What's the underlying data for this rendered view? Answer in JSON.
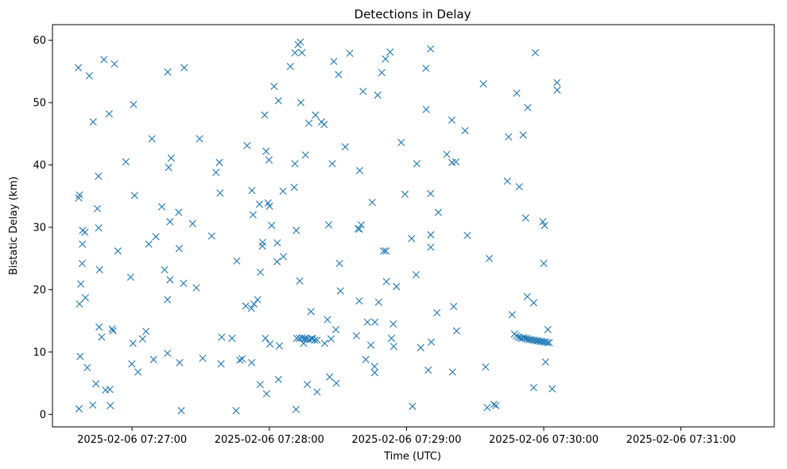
{
  "chart_data": {
    "type": "scatter",
    "title": "Detections in Delay",
    "xlabel": "Time (UTC)",
    "ylabel": "Bistatic Delay (km)",
    "marker": "x",
    "color": "#1f77b4",
    "x_unit": "seconds after 2025-02-06 07:26:00",
    "xlim": [
      25.2,
      340.8
    ],
    "ylim": [
      -2,
      62.5
    ],
    "x_ticks": [
      {
        "value": 60,
        "label": "2025-02-06 07:27:00"
      },
      {
        "value": 120,
        "label": "2025-02-06 07:28:00"
      },
      {
        "value": 180,
        "label": "2025-02-06 07:29:00"
      },
      {
        "value": 240,
        "label": "2025-02-06 07:30:00"
      },
      {
        "value": 300,
        "label": "2025-02-06 07:31:00"
      }
    ],
    "y_ticks": [
      {
        "value": 0,
        "label": "0"
      },
      {
        "value": 10,
        "label": "10"
      },
      {
        "value": 20,
        "label": "20"
      },
      {
        "value": 30,
        "label": "30"
      },
      {
        "value": 40,
        "label": "40"
      },
      {
        "value": 50,
        "label": "50"
      },
      {
        "value": 60,
        "label": "60"
      }
    ],
    "points": [
      [
        36.5,
        55.6
      ],
      [
        37,
        35.2
      ],
      [
        36.7,
        34.7
      ],
      [
        37,
        17.7
      ],
      [
        37.3,
        9.3
      ],
      [
        37.6,
        20.9
      ],
      [
        38.2,
        24.2
      ],
      [
        38.3,
        27.3
      ],
      [
        38.4,
        29.5
      ],
      [
        39.4,
        29.2
      ],
      [
        39.6,
        18.7
      ],
      [
        40.4,
        7.5
      ],
      [
        36.8,
        0.9
      ],
      [
        41.3,
        54.3
      ],
      [
        43.0,
        46.9
      ],
      [
        42.8,
        1.5
      ],
      [
        44.2,
        4.9
      ],
      [
        44.8,
        33.0
      ],
      [
        45.3,
        38.2
      ],
      [
        45.4,
        29.9
      ],
      [
        45.6,
        14.0
      ],
      [
        45.8,
        23.2
      ],
      [
        46.7,
        12.4
      ],
      [
        47.7,
        56.9
      ],
      [
        48.4,
        3.9
      ],
      [
        50.0,
        48.2
      ],
      [
        50.3,
        4.0
      ],
      [
        50.5,
        1.4
      ],
      [
        51.3,
        13.7
      ],
      [
        51.7,
        13.4
      ],
      [
        52.3,
        56.2
      ],
      [
        53.8,
        26.2
      ],
      [
        57.3,
        40.5
      ],
      [
        59.4,
        22.0
      ],
      [
        59.9,
        8.1
      ],
      [
        60.4,
        11.4
      ],
      [
        60.6,
        49.7
      ],
      [
        61.1,
        35.1
      ],
      [
        62.6,
        6.8
      ],
      [
        64.6,
        12.1
      ],
      [
        66.1,
        13.3
      ],
      [
        67.3,
        27.3
      ],
      [
        68.7,
        44.2
      ],
      [
        69.4,
        8.8
      ],
      [
        70.4,
        28.5
      ],
      [
        73.0,
        33.3
      ],
      [
        74.2,
        23.2
      ],
      [
        75.5,
        18.4
      ],
      [
        75.5,
        9.8
      ],
      [
        75.6,
        54.9
      ],
      [
        76.0,
        39.6
      ],
      [
        76.6,
        21.6
      ],
      [
        76.6,
        30.9
      ],
      [
        77.1,
        41.1
      ],
      [
        80.4,
        32.4
      ],
      [
        80.6,
        26.6
      ],
      [
        80.8,
        8.3
      ],
      [
        81.5,
        0.6
      ],
      [
        82.5,
        21.0
      ],
      [
        82.8,
        55.6
      ],
      [
        86.5,
        30.6
      ],
      [
        88.1,
        20.3
      ],
      [
        89.5,
        44.2
      ],
      [
        90.9,
        9.0
      ],
      [
        94.8,
        28.6
      ],
      [
        96.7,
        38.8
      ],
      [
        98.2,
        40.4
      ],
      [
        98.5,
        35.5
      ],
      [
        98.9,
        8.1
      ],
      [
        99.2,
        12.4
      ],
      [
        103.7,
        12.2
      ],
      [
        105.5,
        0.6
      ],
      [
        105.8,
        24.6
      ],
      [
        107.1,
        8.7
      ],
      [
        108.1,
        8.9
      ],
      [
        109.7,
        17.4
      ],
      [
        110.3,
        43.1
      ],
      [
        112.2,
        17.0
      ],
      [
        112.3,
        8.3
      ],
      [
        112.4,
        35.9
      ],
      [
        112.9,
        32.0
      ],
      [
        113.3,
        17.7
      ],
      [
        114.9,
        18.4
      ],
      [
        115.7,
        33.7
      ],
      [
        116.0,
        4.8
      ],
      [
        116.1,
        22.8
      ],
      [
        117.0,
        27.0
      ],
      [
        117.1,
        27.6
      ],
      [
        118.0,
        48.0
      ],
      [
        118.3,
        12.2
      ],
      [
        118.6,
        42.2
      ],
      [
        118.8,
        3.3
      ],
      [
        119.5,
        33.9
      ],
      [
        119.9,
        40.8
      ],
      [
        120.1,
        33.4
      ],
      [
        120.3,
        11.3
      ],
      [
        121.0,
        30.3
      ],
      [
        122.1,
        52.6
      ],
      [
        123.4,
        24.5
      ],
      [
        123.5,
        27.5
      ],
      [
        124.0,
        50.3
      ],
      [
        124.0,
        5.6
      ],
      [
        124.4,
        11.0
      ],
      [
        126.0,
        35.8
      ],
      [
        126.2,
        25.3
      ],
      [
        129.2,
        55.8
      ],
      [
        130.9,
        36.4
      ],
      [
        131.2,
        58.0
      ],
      [
        131.8,
        29.5
      ],
      [
        132.0,
        12.2
      ],
      [
        133.2,
        12.2
      ],
      [
        134.3,
        12.3
      ],
      [
        135.4,
        12.2
      ],
      [
        136.5,
        12.1
      ],
      [
        137.6,
        12.0
      ],
      [
        138.7,
        12.1
      ],
      [
        139.8,
        11.9
      ],
      [
        140.9,
        11.9
      ],
      [
        135.0,
        11.4
      ],
      [
        138.6,
        12.2
      ],
      [
        131.2,
        40.2
      ],
      [
        131.7,
        0.8
      ],
      [
        132.6,
        59.3
      ],
      [
        133.6,
        59.7
      ],
      [
        133.3,
        21.4
      ],
      [
        133.8,
        50.0
      ],
      [
        134.3,
        58.0
      ],
      [
        135.5,
        12.1
      ],
      [
        135.8,
        41.6
      ],
      [
        136.6,
        4.8
      ],
      [
        137.3,
        46.7
      ],
      [
        138.2,
        16.5
      ],
      [
        140.2,
        48.0
      ],
      [
        140.9,
        3.6
      ],
      [
        142.8,
        46.9
      ],
      [
        144.0,
        46.5
      ],
      [
        144.2,
        11.4
      ],
      [
        145.4,
        15.2
      ],
      [
        146.0,
        30.4
      ],
      [
        146.4,
        6.0
      ],
      [
        147.0,
        12.1
      ],
      [
        147.5,
        40.2
      ],
      [
        148.2,
        56.6
      ],
      [
        149.1,
        13.6
      ],
      [
        149.3,
        5.0
      ],
      [
        150.3,
        54.5
      ],
      [
        150.7,
        24.2
      ],
      [
        151.1,
        19.8
      ],
      [
        153.2,
        42.9
      ],
      [
        155.2,
        57.9
      ],
      [
        158.1,
        12.6
      ],
      [
        158.8,
        29.8
      ],
      [
        159.4,
        29.7
      ],
      [
        159.3,
        18.2
      ],
      [
        159.5,
        39.1
      ],
      [
        160.2,
        30.4
      ],
      [
        161.0,
        51.8
      ],
      [
        162.2,
        8.8
      ],
      [
        162.9,
        14.8
      ],
      [
        164.4,
        11.1
      ],
      [
        165.0,
        34.0
      ],
      [
        166.0,
        7.7
      ],
      [
        166.1,
        6.7
      ],
      [
        166.2,
        14.8
      ],
      [
        167.4,
        51.2
      ],
      [
        167.8,
        18.0
      ],
      [
        169.2,
        54.8
      ],
      [
        170.0,
        26.2
      ],
      [
        170.8,
        57.0
      ],
      [
        171.0,
        26.2
      ],
      [
        171.2,
        21.3
      ],
      [
        172.8,
        58.1
      ],
      [
        173.4,
        12.2
      ],
      [
        174.2,
        14.5
      ],
      [
        174.4,
        10.9
      ],
      [
        175.6,
        20.5
      ],
      [
        177.7,
        43.6
      ],
      [
        179.3,
        35.3
      ],
      [
        182.2,
        28.2
      ],
      [
        182.6,
        1.3
      ],
      [
        184.2,
        22.4
      ],
      [
        184.5,
        40.2
      ],
      [
        186.2,
        10.7
      ],
      [
        188.5,
        55.5
      ],
      [
        188.6,
        48.9
      ],
      [
        189.5,
        7.1
      ],
      [
        190.5,
        58.6
      ],
      [
        190.5,
        35.4
      ],
      [
        190.6,
        28.8
      ],
      [
        190.6,
        26.8
      ],
      [
        190.8,
        11.6
      ],
      [
        193.3,
        16.3
      ],
      [
        193.9,
        32.4
      ],
      [
        197.6,
        41.7
      ],
      [
        199.8,
        47.2
      ],
      [
        199.9,
        40.4
      ],
      [
        200.1,
        6.8
      ],
      [
        200.6,
        17.3
      ],
      [
        201.6,
        40.5
      ],
      [
        201.9,
        13.4
      ],
      [
        205.6,
        45.5
      ],
      [
        206.6,
        28.7
      ],
      [
        213.6,
        53.0
      ],
      [
        214.6,
        7.6
      ],
      [
        215.3,
        1.1
      ],
      [
        216.2,
        25.0
      ],
      [
        218.2,
        1.6
      ],
      [
        219.1,
        1.4
      ],
      [
        224.1,
        37.4
      ],
      [
        224.6,
        44.5
      ],
      [
        226.2,
        16.0
      ],
      [
        227.2,
        12.9
      ],
      [
        228.0,
        12.6
      ],
      [
        228.8,
        12.4
      ],
      [
        229.6,
        12.3
      ],
      [
        230.4,
        12.2
      ],
      [
        231.2,
        12.3
      ],
      [
        232.0,
        12.2
      ],
      [
        232.8,
        12.1
      ],
      [
        233.6,
        12.0
      ],
      [
        234.4,
        12.0
      ],
      [
        235.2,
        11.9
      ],
      [
        236.0,
        11.9
      ],
      [
        236.8,
        11.8
      ],
      [
        237.6,
        11.8
      ],
      [
        238.4,
        11.7
      ],
      [
        239.2,
        11.7
      ],
      [
        240.0,
        11.6
      ],
      [
        240.8,
        11.6
      ],
      [
        241.6,
        11.5
      ],
      [
        242.4,
        11.5
      ],
      [
        228.2,
        51.5
      ],
      [
        229.3,
        36.5
      ],
      [
        231.0,
        44.8
      ],
      [
        232.1,
        31.5
      ],
      [
        233.0,
        49.2
      ],
      [
        232.8,
        18.9
      ],
      [
        235.6,
        17.9
      ],
      [
        235.6,
        4.3
      ],
      [
        236.3,
        58.0
      ],
      [
        239.6,
        30.9
      ],
      [
        240.0,
        24.2
      ],
      [
        240.4,
        30.3
      ],
      [
        240.8,
        8.4
      ],
      [
        241.8,
        13.6
      ],
      [
        243.7,
        4.1
      ],
      [
        245.8,
        53.2
      ],
      [
        245.9,
        52.0
      ]
    ]
  }
}
